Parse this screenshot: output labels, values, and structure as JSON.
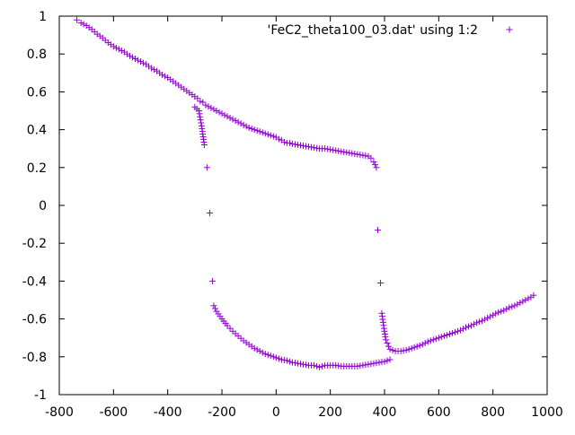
{
  "chart_data": {
    "type": "scatter",
    "title": "",
    "xlabel": "",
    "ylabel": "",
    "xlim": [
      -800,
      1000
    ],
    "ylim": [
      -1,
      1
    ],
    "x_ticks": [
      -800,
      -600,
      -400,
      -200,
      0,
      200,
      400,
      600,
      800,
      1000
    ],
    "y_ticks": [
      -1,
      -0.8,
      -0.6,
      -0.4,
      -0.2,
      0,
      0.2,
      0.4,
      0.6,
      0.8,
      1
    ],
    "x_tick_labels": [
      "-800",
      "-600",
      "-400",
      "-200",
      "0",
      "200",
      "400",
      "600",
      "800",
      "1000"
    ],
    "y_tick_labels": [
      "-1",
      "-0.8",
      "-0.6",
      "-0.4",
      "-0.2",
      "0",
      "0.2",
      "0.4",
      "0.6",
      "0.8",
      "1"
    ],
    "grid": false,
    "legend_position": "top-right",
    "marker": "+",
    "colors": {
      "series": "#9400d3",
      "axes": "#000000",
      "background": "#ffffff"
    },
    "series": [
      {
        "name": "'FeC2_theta100_03.dat' using 1:2",
        "segments": [
          {
            "x": [
              -735,
              -720,
              -700,
              -680,
              -660,
              -640,
              -620,
              -600,
              -580,
              -560,
              -540,
              -520,
              -500,
              -480,
              -460,
              -440,
              -420,
              -400,
              -380,
              -360,
              -340,
              -320,
              -300,
              -290,
              -280,
              -270,
              -260,
              -240,
              -220,
              -200,
              -180,
              -160,
              -140,
              -120,
              -100,
              -80,
              -60,
              -40,
              -20,
              0,
              10,
              20,
              30,
              40,
              50,
              60,
              80,
              100,
              120,
              140,
              160,
              180,
              200,
              220,
              240,
              260,
              280,
              300,
              320,
              340,
              350,
              360,
              370
            ],
            "y": [
              0.98,
              0.965,
              0.95,
              0.93,
              0.905,
              0.885,
              0.86,
              0.84,
              0.825,
              0.81,
              0.79,
              0.775,
              0.76,
              0.745,
              0.725,
              0.71,
              0.69,
              0.675,
              0.655,
              0.635,
              0.615,
              0.595,
              0.575,
              0.565,
              0.55,
              0.545,
              0.53,
              0.515,
              0.5,
              0.485,
              0.47,
              0.455,
              0.44,
              0.425,
              0.41,
              0.4,
              0.39,
              0.38,
              0.37,
              0.36,
              0.35,
              0.345,
              0.335,
              0.33,
              0.33,
              0.325,
              0.32,
              0.315,
              0.31,
              0.305,
              0.3,
              0.3,
              0.295,
              0.29,
              0.285,
              0.28,
              0.275,
              0.27,
              0.265,
              0.26,
              0.25,
              0.23,
              0.2
            ]
          },
          {
            "x": [
              -300,
              -285,
              -275,
              -265,
              -255,
              -245,
              -235
            ],
            "y": [
              0.52,
              0.5,
              0.42,
              0.32,
              0.2,
              -0.04,
              -0.4
            ]
          },
          {
            "x": [
              -230,
              -220,
              -200,
              -180,
              -160,
              -140,
              -120,
              -100,
              -80,
              -60,
              -40,
              -20,
              0,
              20,
              40,
              60,
              80,
              100,
              120,
              140,
              150,
              160,
              170,
              180,
              200,
              220,
              240,
              260,
              280,
              300,
              320,
              340,
              360,
              380,
              400,
              420
            ],
            "y": [
              -0.53,
              -0.56,
              -0.6,
              -0.635,
              -0.665,
              -0.69,
              -0.715,
              -0.735,
              -0.755,
              -0.77,
              -0.785,
              -0.795,
              -0.805,
              -0.815,
              -0.82,
              -0.83,
              -0.835,
              -0.84,
              -0.845,
              -0.845,
              -0.85,
              -0.855,
              -0.85,
              -0.845,
              -0.845,
              -0.845,
              -0.85,
              -0.85,
              -0.85,
              -0.85,
              -0.845,
              -0.84,
              -0.835,
              -0.83,
              -0.825,
              -0.815
            ]
          },
          {
            "x": [
              375,
              385,
              390,
              398,
              405,
              415
            ],
            "y": [
              -0.13,
              -0.41,
              -0.57,
              -0.65,
              -0.71,
              -0.745
            ]
          },
          {
            "x": [
              420,
              440,
              460,
              480,
              500,
              520,
              540,
              560,
              580,
              600,
              620,
              640,
              660,
              680,
              700,
              720,
              740,
              760,
              780,
              800,
              820,
              840,
              860,
              880,
              900,
              920,
              940,
              950
            ],
            "y": [
              -0.76,
              -0.77,
              -0.77,
              -0.765,
              -0.755,
              -0.745,
              -0.735,
              -0.72,
              -0.71,
              -0.7,
              -0.69,
              -0.68,
              -0.67,
              -0.66,
              -0.645,
              -0.635,
              -0.62,
              -0.61,
              -0.595,
              -0.58,
              -0.565,
              -0.555,
              -0.54,
              -0.53,
              -0.515,
              -0.5,
              -0.485,
              -0.475
            ]
          }
        ]
      }
    ]
  }
}
